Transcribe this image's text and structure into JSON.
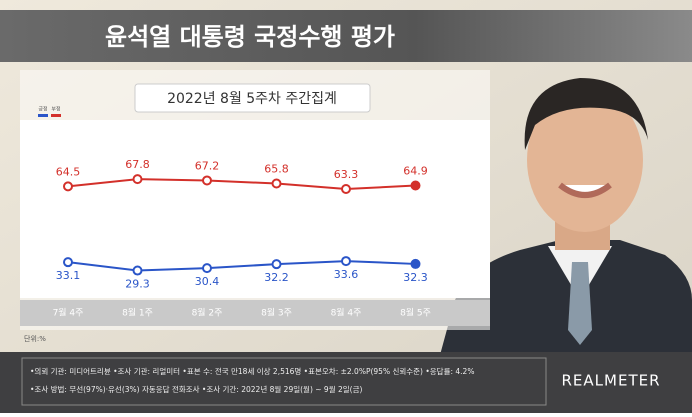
{
  "chart_data": {
    "type": "line",
    "title": "윤석열 대통령 국정수행 평가",
    "subtitle": "2022년 8월 5주차 주간집계",
    "unit_label": "단위:%",
    "categories": [
      "7월 4주",
      "8월 1주",
      "8월 2주",
      "8월 3주",
      "8월 4주",
      "8월 5주"
    ],
    "series": [
      {
        "name": "긍정",
        "color": "#2a55c8",
        "values": [
          33.1,
          29.3,
          30.4,
          32.2,
          33.6,
          32.3
        ]
      },
      {
        "name": "부정",
        "color": "#d3302a",
        "values": [
          64.5,
          67.8,
          67.2,
          65.8,
          63.3,
          64.9
        ]
      }
    ]
  },
  "footer": {
    "lines": [
      "•의뢰 기관: 미디어트리뷴 •조사 기관: 리얼미터 •표본 수: 전국 만18세 이상 2,516명 •표본오차: ±2.0%P(95% 신뢰수준) •응답률: 4.2%",
      "•조사 방법: 무선(97%)·유선(3%) 자동응답 전화조사 •조사 기간: 2022년 8월 29일(월) ~ 9월 2일(금)"
    ],
    "logo": "REALMETER"
  }
}
